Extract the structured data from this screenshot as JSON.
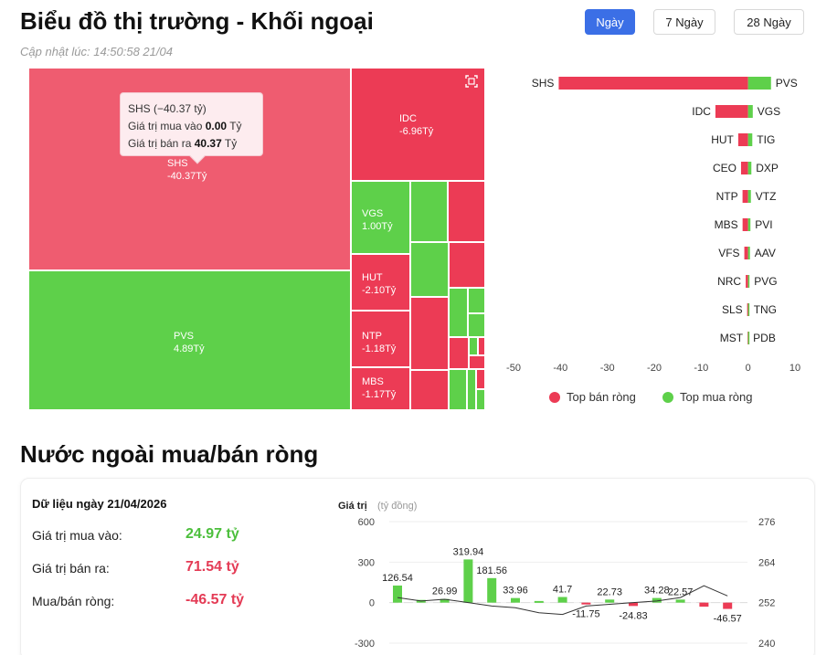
{
  "header": {
    "title": "Biểu đồ thị trường - Khối ngoại",
    "updated": "Cập nhật lúc: 14:50:58 21/04",
    "ranges": [
      "Ngày",
      "7 Ngày",
      "28 Ngày"
    ],
    "active_range": "Ngày"
  },
  "colors": {
    "sell": "#ec3b55",
    "buy": "#5ed04a",
    "accent": "#3b6fe6"
  },
  "treemap": {
    "tiles": [
      {
        "code": "SHS",
        "value": "-40.37Tỷ"
      },
      {
        "code": "PVS",
        "value": "4.89Tỷ"
      },
      {
        "code": "IDC",
        "value": "-6.96Tỷ"
      },
      {
        "code": "VGS",
        "value": "1.00Tỷ"
      },
      {
        "code": "HUT",
        "value": "-2.10Tỷ"
      },
      {
        "code": "NTP",
        "value": "-1.18Tỷ"
      },
      {
        "code": "MBS",
        "value": "-1.17Tỷ"
      }
    ],
    "tooltip": {
      "title": "SHS (−40.37 tỷ)",
      "buy_label": "Giá trị mua vào",
      "buy_value": "0.00",
      "sell_label": "Giá trị bán ra",
      "sell_value": "40.37",
      "unit": "Tỷ"
    },
    "fullscreen_icon": "fullscreen-icon"
  },
  "top_chart": {
    "sell_codes": [
      "SHS",
      "IDC",
      "HUT",
      "CEO",
      "NTP",
      "MBS",
      "VFS",
      "NRC",
      "SLS",
      "MST"
    ],
    "sell_values": [
      -40.37,
      -6.96,
      -2.1,
      -1.5,
      -1.18,
      -1.17,
      -0.8,
      -0.5,
      -0.2,
      -0.1
    ],
    "buy_codes": [
      "PVS",
      "VGS",
      "TIG",
      "DXP",
      "VTZ",
      "PVI",
      "AAV",
      "PVG",
      "TNG",
      "PDB"
    ],
    "buy_values": [
      4.89,
      1.0,
      0.9,
      0.7,
      0.6,
      0.5,
      0.4,
      0.3,
      0.2,
      0.1
    ],
    "x_ticks": [
      "-50",
      "-40",
      "-30",
      "-20",
      "-10",
      "0",
      "10"
    ],
    "xlim": [
      -50,
      10
    ],
    "legend_sell": "Top bán ròng",
    "legend_buy": "Top mua ròng"
  },
  "net": {
    "section_title": "Nước ngoài mua/bán ròng",
    "data_date": "Dữ liệu ngày 21/04/2026",
    "buy_label": "Giá trị mua vào:",
    "buy_value": "24.97 tỷ",
    "sell_label": "Giá trị bán ra:",
    "sell_value": "71.54 tỷ",
    "net_label": "Mua/bán ròng:",
    "net_value": "-46.57 tỷ"
  },
  "chart_data": {
    "type": "bar",
    "ylabel": "Giá trị",
    "ylabel_unit": "(tỷ đồng)",
    "ylim": [
      -300,
      600
    ],
    "y_ticks": [
      "600",
      "300",
      "0",
      "-300"
    ],
    "y2lim": [
      240,
      276
    ],
    "y2_ticks": [
      "276",
      "264",
      "252",
      "240"
    ],
    "values": [
      126.54,
      20,
      26.99,
      319.94,
      181.56,
      33.96,
      12,
      41.7,
      -11.75,
      22.73,
      -24.83,
      34.28,
      22.57,
      -30,
      -46.57
    ],
    "labels": [
      "126.54",
      "",
      "26.99",
      "319.94",
      "181.56",
      "33.96",
      "",
      "41.7",
      "-11.75",
      "22.73",
      "-24.83",
      "34.28",
      "22.57",
      "",
      "-46.57"
    ],
    "line": [
      253.5,
      252.5,
      253,
      252,
      251,
      250.5,
      249,
      248.5,
      251,
      251.5,
      252,
      252.5,
      253.5,
      257,
      254
    ]
  }
}
